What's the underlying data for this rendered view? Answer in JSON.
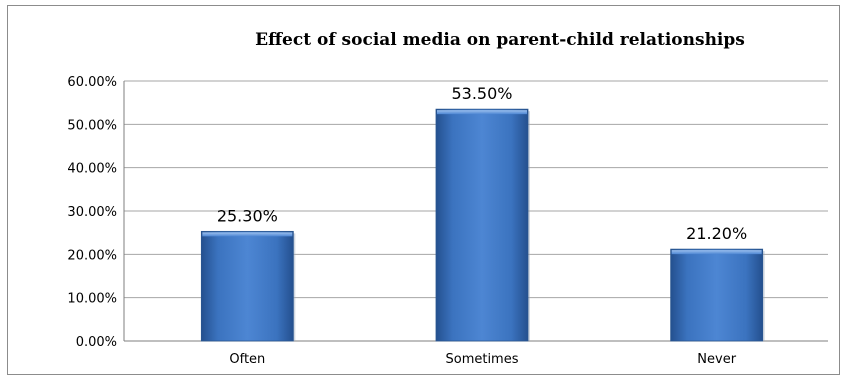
{
  "chart_data": {
    "type": "bar",
    "title": "Effect of social media on parent-child relationships",
    "categories": [
      "Often",
      "Sometimes",
      "Never"
    ],
    "values": [
      25.3,
      53.5,
      21.2
    ],
    "data_labels": [
      "25.30%",
      "53.50%",
      "21.20%"
    ],
    "y_ticks": [
      "0.00%",
      "10.00%",
      "20.00%",
      "30.00%",
      "40.00%",
      "50.00%",
      "60.00%"
    ],
    "ylim": [
      0,
      60
    ],
    "grid": true,
    "legend": "none",
    "bar_color": "#3a72c0"
  }
}
